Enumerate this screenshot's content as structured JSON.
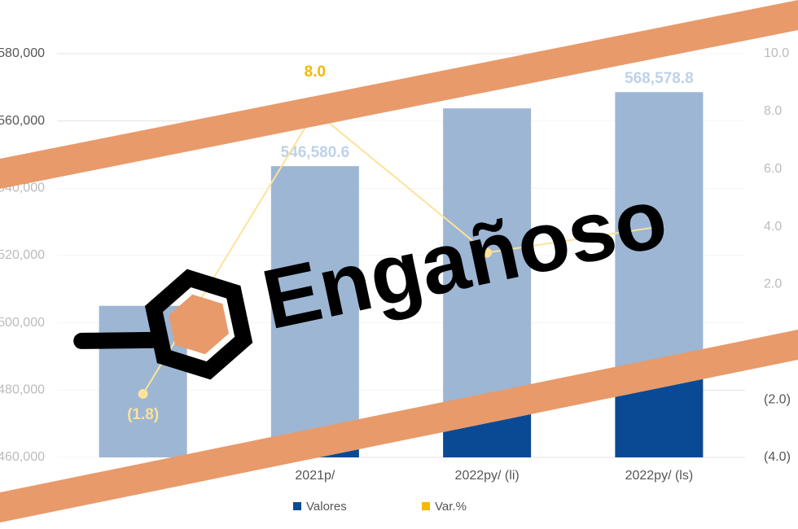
{
  "chart_data": {
    "type": "bar",
    "categories": [
      null,
      "2021p/",
      "2022py/ (li)",
      "2022py/ (ls)"
    ],
    "series": [
      {
        "name": "Valores",
        "color": "#0a4a94",
        "values": [
          505063,
          546580.6,
          563749.8,
          568578.8
        ],
        "value_labels": [
          null,
          "546,580.6",
          null,
          "568,578.8"
        ]
      },
      {
        "name": "Var.%",
        "color": "#f5b800",
        "axis": "y2",
        "type": "line",
        "values": [
          -1.8,
          8.0,
          3.1,
          4.0
        ],
        "value_labels": [
          "(1.8)",
          "8.0",
          null,
          null
        ]
      }
    ],
    "ylim": [
      460000,
      580000
    ],
    "yticks": [
      {
        "value": 460000,
        "label": "460,000"
      },
      {
        "value": 480000,
        "label": "480,000"
      },
      {
        "value": 500000,
        "label": "500,000"
      },
      {
        "value": 520000,
        "label": "520,000"
      },
      {
        "value": 540000,
        "label": "540,000"
      },
      {
        "value": 560000,
        "label": "560,000"
      },
      {
        "value": 580000,
        "label": "580,000"
      }
    ],
    "y2lim": [
      -4,
      10
    ],
    "y2ticks": [
      {
        "value": -4,
        "label": "(4.0)"
      },
      {
        "value": -2,
        "label": "(2.0)"
      },
      {
        "value": 2,
        "label": "2.0"
      },
      {
        "value": 4,
        "label": "4.0"
      },
      {
        "value": 6,
        "label": "6.0"
      },
      {
        "value": 8,
        "label": "8.0"
      },
      {
        "value": 10,
        "label": "10.0"
      }
    ],
    "grid": true,
    "legend": "bottom"
  },
  "stamp": "Engañoso"
}
